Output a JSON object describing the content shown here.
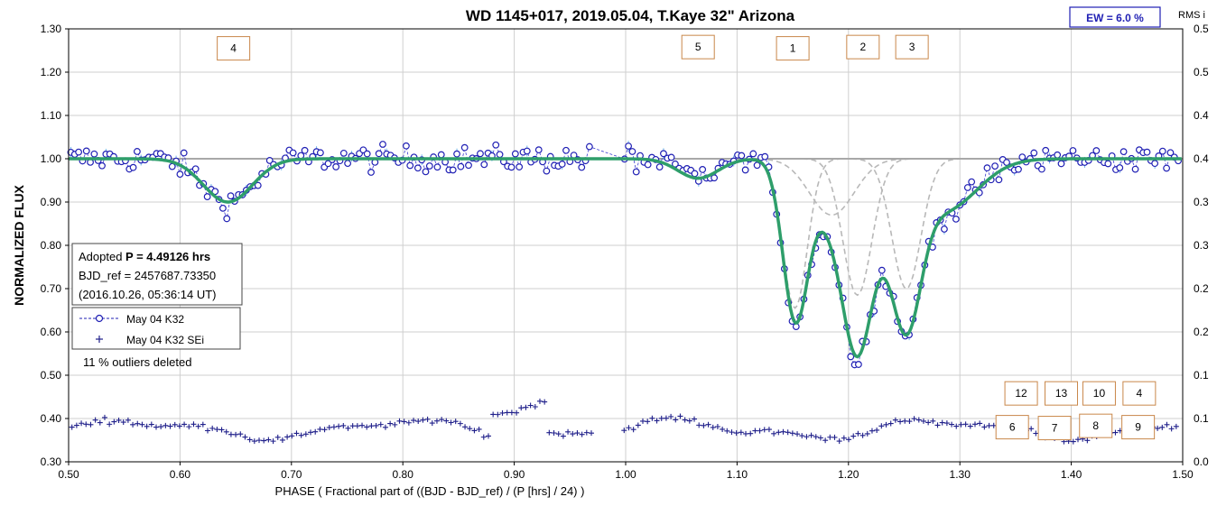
{
  "chart_data": {
    "type": "scatter",
    "title": "WD 1145+017, 2019.05.04, T.Kaye 32\" Arizona",
    "xlabel": "PHASE ( Fractional part of ((BJD - BJD_ref) / (P [hrs] / 24) )",
    "ylabel": "NORMALIZED FLUX",
    "y2label": "RMS i",
    "xlim": [
      0.5,
      1.5
    ],
    "ylim": [
      0.3,
      1.3
    ],
    "y2lim": [
      0.0,
      0.5
    ],
    "x_ticks": [
      "0.50",
      "0.60",
      "0.70",
      "0.80",
      "0.90",
      "1.00",
      "1.10",
      "1.20",
      "1.30",
      "1.40",
      "1.50"
    ],
    "y_ticks": [
      "0.30",
      "0.40",
      "0.50",
      "0.60",
      "0.70",
      "0.80",
      "0.90",
      "1.00",
      "1.10",
      "1.20",
      "1.30"
    ],
    "y2_ticks": [
      "0.0",
      "0.1",
      "0.1",
      "0.2",
      "0.2",
      "0.3",
      "0.3",
      "0.4",
      "0.4",
      "0.5",
      "0.5"
    ],
    "grid": true,
    "ew_label": "EW =  6.0 %",
    "info_box": {
      "line1_prefix": "Adopted ",
      "line1_value": "P = 4.49126 hrs",
      "line2": "BJD_ref = 2457687.73350",
      "line3": "(2016.10.26, 05:36:14 UT)"
    },
    "legend_placement": "left",
    "series": [
      {
        "name": "May 04 K32",
        "marker": "circle",
        "color": "#1f1fb4"
      },
      {
        "name": "May 04 K32 SEi",
        "marker": "plus",
        "color": "#1f1f8a"
      }
    ],
    "outliers_note": "11 % outliers deleted",
    "model_color": "#2e9e6a",
    "baseline": 1.0,
    "dips": [
      {
        "center": 0.643,
        "depth": 0.1,
        "width": 0.022
      },
      {
        "center": 1.065,
        "depth": 0.045,
        "width": 0.018
      },
      {
        "center": 1.152,
        "depth": 0.345,
        "width": 0.011
      },
      {
        "center": 1.208,
        "depth": 0.315,
        "width": 0.013
      },
      {
        "center": 1.252,
        "depth": 0.3,
        "width": 0.013
      },
      {
        "center": 1.185,
        "depth": 0.13,
        "width": 0.02
      },
      {
        "center": 1.225,
        "depth": 0.1,
        "width": 0.02
      },
      {
        "center": 1.285,
        "depth": 0.12,
        "width": 0.03
      }
    ],
    "dip_labels": [
      {
        "text": "4",
        "x": 0.648,
        "y": 1.255
      },
      {
        "text": "5",
        "x": 1.065,
        "y": 1.258
      },
      {
        "text": "1",
        "x": 1.15,
        "y": 1.255
      },
      {
        "text": "2",
        "x": 1.213,
        "y": 1.258
      },
      {
        "text": "3",
        "x": 1.257,
        "y": 1.258
      },
      {
        "text": "12",
        "x": 1.355,
        "y": 0.458
      },
      {
        "text": "13",
        "x": 1.391,
        "y": 0.458
      },
      {
        "text": "10",
        "x": 1.425,
        "y": 0.458
      },
      {
        "text": "4",
        "x": 1.461,
        "y": 0.458
      },
      {
        "text": "6",
        "x": 1.347,
        "y": 0.38
      },
      {
        "text": "7",
        "x": 1.385,
        "y": 0.378
      },
      {
        "text": "8",
        "x": 1.422,
        "y": 0.383
      },
      {
        "text": "9",
        "x": 1.46,
        "y": 0.38
      }
    ]
  }
}
